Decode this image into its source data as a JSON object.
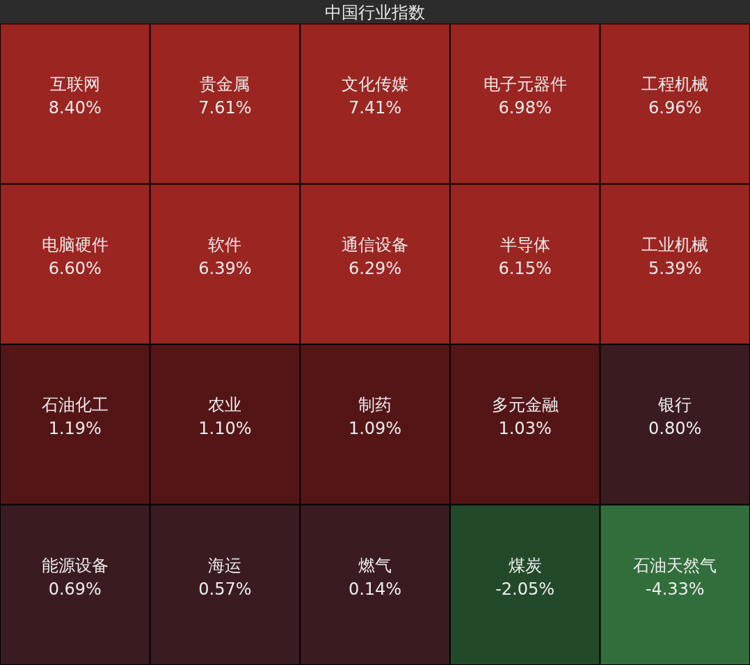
{
  "chart_data": {
    "type": "other",
    "title": "中国行业指数",
    "categories": [
      "互联网",
      "贵金属",
      "文化传媒",
      "电子元器件",
      "工程机械",
      "电脑硬件",
      "软件",
      "通信设备",
      "半导体",
      "工业机械",
      "石油化工",
      "农业",
      "制药",
      "多元金融",
      "银行",
      "能源设备",
      "海运",
      "燃气",
      "煤炭",
      "石油天然气"
    ],
    "values": [
      8.4,
      7.61,
      7.41,
      6.98,
      6.96,
      6.6,
      6.39,
      6.29,
      6.15,
      5.39,
      1.19,
      1.1,
      1.09,
      1.03,
      0.8,
      0.69,
      0.57,
      0.14,
      -2.05,
      -4.33
    ],
    "value_labels": [
      "8.40%",
      "7.61%",
      "7.41%",
      "6.98%",
      "6.96%",
      "6.60%",
      "6.39%",
      "6.29%",
      "6.15%",
      "5.39%",
      "1.19%",
      "1.10%",
      "1.09%",
      "1.03%",
      "0.80%",
      "0.69%",
      "0.57%",
      "0.14%",
      "-2.05%",
      "-4.33%"
    ],
    "colors": [
      "#9b2521",
      "#9b2521",
      "#9b2521",
      "#9b2521",
      "#9b2521",
      "#9b2521",
      "#9b2521",
      "#9b2521",
      "#9b2521",
      "#9b2521",
      "#541517",
      "#541517",
      "#541517",
      "#541517",
      "#3a1c20",
      "#3a1c20",
      "#3a1c20",
      "#3a1c20",
      "#224a2a",
      "#326e3c"
    ]
  }
}
